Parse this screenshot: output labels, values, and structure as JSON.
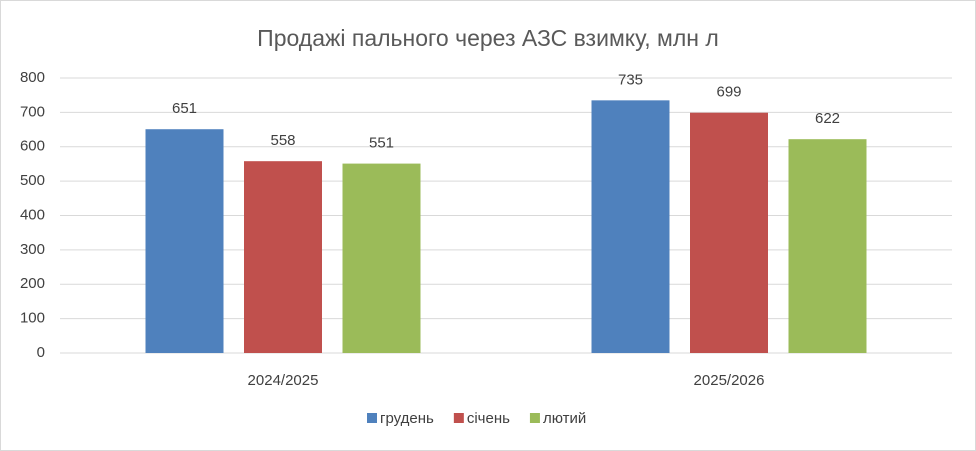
{
  "chart_data": {
    "type": "bar",
    "title": "Продажі пального через АЗС взимку, млн л",
    "categories": [
      "2024/2025",
      "2025/2026"
    ],
    "series": [
      {
        "name": "грудень",
        "color": "#4f81bd",
        "values": [
          651,
          735
        ]
      },
      {
        "name": "січень",
        "color": "#c0504d",
        "values": [
          558,
          699
        ]
      },
      {
        "name": "лютий",
        "color": "#9bbb59",
        "values": [
          551,
          622
        ]
      }
    ],
    "ylim": [
      0,
      800
    ],
    "yticks": [
      0,
      100,
      200,
      300,
      400,
      500,
      600,
      700,
      800
    ],
    "grid": true,
    "legend": "bottom"
  }
}
